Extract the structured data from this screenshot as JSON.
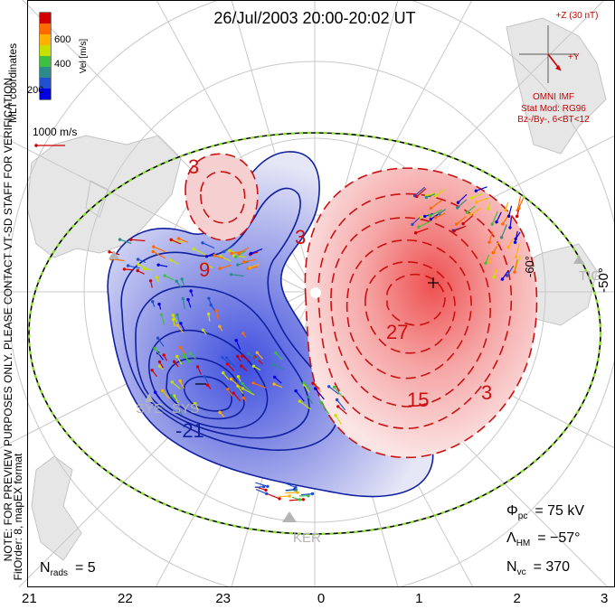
{
  "title": "26/Jul/2003 20:00-20:02 UT",
  "left_labels": {
    "mlt_coordinates": "MLT coordinates",
    "note": "NOTE: FOR PREVIEW PURPOSES ONLY. PLEASE CONTACT VT-SD STAFF FOR VERIFICATION.",
    "fitorder": "FitOrder: 8, mapEX format"
  },
  "colorbar": {
    "ticks": [
      "600",
      "400",
      "200"
    ],
    "unit_label": "Vel [m/s]",
    "colors": [
      "#d40000",
      "#ff6a00",
      "#ffb000",
      "#c8e000",
      "#3fbf3f",
      "#2e8b8b",
      "#2050d0",
      "#0000e0"
    ]
  },
  "vector_scale": {
    "label": "1000 m/s",
    "color": "#cc0000"
  },
  "imf": {
    "z_label": "+Z (30 nT)",
    "y_label": "+Y",
    "source": "OMNI IMF",
    "stat_mod": "Stat Mod: RG96",
    "bin": "Bz-/By-, 6<BT<12",
    "color": "#cc0000"
  },
  "mlat_label": "-50°",
  "mlat_inner_label": "-60°",
  "contour_labels": {
    "positive": [
      "3",
      "9",
      "3",
      "27",
      "15",
      "3"
    ],
    "negative": [
      "-21"
    ]
  },
  "station_labels": {
    "sys": "SYS",
    "sye": "SYE",
    "ker": "KER",
    "tig": "TIG"
  },
  "stats": {
    "phi_pc_symbol": "Φ",
    "phi_pc_sub": "pc",
    "phi_pc_value": "=  75 kV",
    "lambda_symbol": "Λ",
    "lambda_sub": "HM",
    "lambda_value": "= −57°",
    "nvc_symbol": "N",
    "nvc_sub": "vc",
    "nvc_value": "=  370",
    "nrads_symbol": "N",
    "nrads_sub": "rads",
    "nrads_value": "= 5"
  },
  "mlt_axis": [
    "21",
    "22",
    "23",
    "0",
    "1",
    "2",
    "3"
  ],
  "colors": {
    "negative_contour": "#1020a0",
    "positive_contour": "#cc1010",
    "hmb": "#00aa00",
    "grid": "#c8c8c8",
    "coast": "#d8d8d8"
  }
}
